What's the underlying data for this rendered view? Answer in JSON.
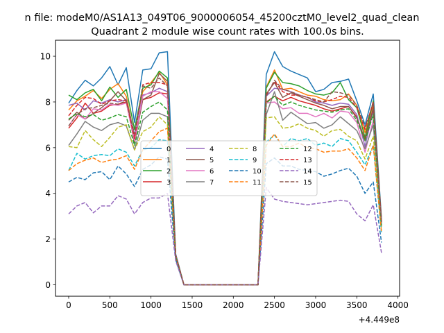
{
  "chart_data": {
    "type": "line",
    "suptitle": "n file: modeM0/AS1A13_049T06_9000006054_45200cztM0_level2_quad_clean",
    "title": "Quadrant 2 module wise count rates with 100.0s bins.",
    "xlabel": "",
    "ylabel": "",
    "x_offset_label": "+4.449e8",
    "xlim": [
      -160,
      4020
    ],
    "ylim": [
      -0.5,
      10.7
    ],
    "xticks": [
      0,
      500,
      1000,
      1500,
      2000,
      2500,
      3000,
      3500,
      4000
    ],
    "yticks": [
      0,
      2,
      4,
      6,
      8,
      10
    ],
    "legend_position": "center",
    "x": [
      0,
      100,
      200,
      300,
      400,
      500,
      600,
      700,
      800,
      900,
      1000,
      1100,
      1200,
      1300,
      1400,
      1500,
      1600,
      1700,
      1800,
      1900,
      2000,
      2100,
      2200,
      2300,
      2400,
      2500,
      2600,
      2700,
      2800,
      2900,
      3000,
      3100,
      3200,
      3300,
      3400,
      3500,
      3600,
      3700,
      3800
    ],
    "series": [
      {
        "name": "0",
        "color": "#1f77b4",
        "dash": "solid",
        "values": [
          7.95,
          8.5,
          8.95,
          8.7,
          9.05,
          9.55,
          8.75,
          9.5,
          7.1,
          9.4,
          9.45,
          10.15,
          10.2,
          1.35,
          0.0,
          0.0,
          0.0,
          0.0,
          0.0,
          0.0,
          0.0,
          0.0,
          0.0,
          0.0,
          9.2,
          10.2,
          9.55,
          9.35,
          9.2,
          9.05,
          8.45,
          8.55,
          8.85,
          8.9,
          9.0,
          8.05,
          7.0,
          8.35,
          2.9
        ]
      },
      {
        "name": "1",
        "color": "#ff7f0e",
        "dash": "solid",
        "values": [
          7.65,
          8.05,
          8.25,
          8.5,
          8.15,
          8.55,
          8.8,
          8.25,
          6.5,
          8.45,
          8.85,
          9.3,
          8.75,
          1.3,
          0.0,
          0.0,
          0.0,
          0.0,
          0.0,
          0.0,
          0.0,
          0.0,
          0.0,
          0.0,
          8.65,
          9.4,
          8.55,
          8.6,
          8.45,
          8.3,
          8.25,
          8.1,
          8.05,
          8.1,
          8.35,
          7.85,
          6.65,
          7.9,
          2.75
        ]
      },
      {
        "name": "2",
        "color": "#2ca02c",
        "dash": "solid",
        "values": [
          8.3,
          8.1,
          8.4,
          8.55,
          8.05,
          8.65,
          8.2,
          8.55,
          6.8,
          8.6,
          8.75,
          9.35,
          9.05,
          1.3,
          0.0,
          0.0,
          0.0,
          0.0,
          0.0,
          0.0,
          0.0,
          0.0,
          0.0,
          0.0,
          8.6,
          9.3,
          8.85,
          8.8,
          8.7,
          8.5,
          8.35,
          8.3,
          8.4,
          8.85,
          8.1,
          7.75,
          6.45,
          8.05,
          2.8
        ]
      },
      {
        "name": "3",
        "color": "#d62728",
        "dash": "solid",
        "values": [
          6.85,
          7.3,
          7.95,
          7.5,
          7.6,
          7.85,
          7.9,
          8.0,
          6.35,
          8.1,
          8.2,
          8.4,
          8.35,
          1.25,
          0.0,
          0.0,
          0.0,
          0.0,
          0.0,
          0.0,
          0.0,
          0.0,
          0.0,
          0.0,
          8.0,
          8.25,
          8.05,
          8.2,
          8.05,
          7.95,
          7.85,
          7.7,
          7.6,
          7.7,
          7.8,
          7.35,
          6.35,
          7.75,
          2.7
        ]
      },
      {
        "name": "4",
        "color": "#9467bd",
        "dash": "solid",
        "values": [
          7.85,
          7.95,
          7.65,
          8.05,
          7.95,
          8.1,
          8.0,
          8.1,
          6.55,
          8.3,
          8.4,
          8.6,
          8.45,
          1.3,
          0.0,
          0.0,
          0.0,
          0.0,
          0.0,
          0.0,
          0.0,
          0.0,
          0.0,
          0.0,
          8.25,
          8.6,
          8.55,
          8.45,
          8.3,
          8.2,
          8.0,
          7.95,
          7.85,
          7.95,
          7.9,
          7.45,
          6.05,
          7.65,
          2.75
        ]
      },
      {
        "name": "5",
        "color": "#8c564b",
        "dash": "solid",
        "values": [
          7.2,
          7.55,
          7.25,
          7.5,
          7.75,
          8.05,
          8.45,
          8.05,
          6.2,
          8.1,
          8.3,
          9.25,
          8.9,
          1.3,
          0.0,
          0.0,
          0.0,
          0.0,
          0.0,
          0.0,
          0.0,
          0.0,
          0.0,
          0.0,
          8.35,
          8.85,
          8.2,
          8.4,
          8.25,
          8.1,
          7.95,
          7.85,
          7.7,
          7.8,
          7.8,
          7.3,
          6.3,
          7.7,
          2.7
        ]
      },
      {
        "name": "6",
        "color": "#e377c2",
        "dash": "solid",
        "values": [
          6.95,
          7.45,
          7.25,
          7.7,
          7.65,
          7.9,
          7.85,
          7.95,
          6.3,
          8.25,
          8.45,
          8.45,
          8.15,
          1.25,
          0.0,
          0.0,
          0.0,
          0.0,
          0.0,
          0.0,
          0.0,
          0.0,
          0.0,
          0.0,
          7.95,
          8.0,
          7.7,
          7.75,
          7.5,
          7.5,
          7.35,
          7.5,
          7.3,
          7.6,
          7.55,
          7.1,
          5.8,
          7.2,
          2.55
        ]
      },
      {
        "name": "7",
        "color": "#7f7f7f",
        "dash": "solid",
        "values": [
          6.1,
          6.6,
          7.15,
          6.9,
          6.75,
          7.0,
          7.1,
          6.95,
          5.9,
          7.2,
          7.5,
          7.5,
          7.35,
          1.2,
          0.0,
          0.0,
          0.0,
          0.0,
          0.0,
          0.0,
          0.0,
          0.0,
          0.0,
          0.0,
          7.45,
          8.45,
          7.2,
          7.55,
          7.3,
          7.05,
          7.1,
          6.85,
          7.0,
          7.35,
          7.05,
          6.75,
          5.95,
          7.0,
          2.55
        ]
      },
      {
        "name": "8",
        "color": "#bcbd22",
        "dash": "dashed",
        "values": [
          6.05,
          6.0,
          6.75,
          6.35,
          6.05,
          6.45,
          6.9,
          7.0,
          5.9,
          6.7,
          6.9,
          7.35,
          7.0,
          1.2,
          0.0,
          0.0,
          0.0,
          0.0,
          0.0,
          0.0,
          0.0,
          0.0,
          0.0,
          0.0,
          7.3,
          7.35,
          6.85,
          6.9,
          7.05,
          6.85,
          6.75,
          6.5,
          6.75,
          6.8,
          6.5,
          6.3,
          5.5,
          6.5,
          2.4
        ]
      },
      {
        "name": "9",
        "color": "#17becf",
        "dash": "dashed",
        "values": [
          5.0,
          5.75,
          5.5,
          5.65,
          5.7,
          5.65,
          5.95,
          5.8,
          5.2,
          5.9,
          6.0,
          6.35,
          6.3,
          1.15,
          0.0,
          0.0,
          0.0,
          0.0,
          0.0,
          0.0,
          0.0,
          0.0,
          0.0,
          0.0,
          6.25,
          6.55,
          6.05,
          6.4,
          6.3,
          6.4,
          6.1,
          6.2,
          6.05,
          6.4,
          6.3,
          5.8,
          5.25,
          6.1,
          2.25
        ]
      },
      {
        "name": "10",
        "color": "#1f77b4",
        "dash": "dashed",
        "values": [
          4.5,
          4.7,
          4.6,
          4.9,
          4.95,
          4.6,
          5.2,
          4.85,
          4.3,
          5.05,
          5.25,
          5.6,
          5.5,
          1.1,
          0.0,
          0.0,
          0.0,
          0.0,
          0.0,
          0.0,
          0.0,
          0.0,
          0.0,
          0.0,
          5.3,
          5.55,
          5.2,
          5.2,
          5.05,
          5.0,
          4.95,
          4.75,
          4.85,
          5.0,
          5.1,
          4.75,
          4.0,
          4.5,
          1.85
        ]
      },
      {
        "name": "11",
        "color": "#ff7f0e",
        "dash": "dashed",
        "values": [
          5.0,
          5.3,
          5.45,
          5.55,
          5.35,
          5.45,
          5.5,
          5.65,
          5.05,
          5.9,
          6.3,
          6.7,
          6.85,
          1.2,
          0.0,
          0.0,
          0.0,
          0.0,
          0.0,
          0.0,
          0.0,
          0.0,
          0.0,
          0.0,
          6.1,
          6.6,
          6.05,
          6.05,
          6.2,
          6.0,
          5.95,
          5.8,
          5.85,
          5.85,
          5.95,
          5.55,
          5.0,
          6.1,
          2.3
        ]
      },
      {
        "name": "12",
        "color": "#2ca02c",
        "dash": "dashed",
        "values": [
          7.25,
          7.5,
          7.35,
          7.45,
          7.2,
          7.3,
          7.45,
          7.35,
          6.1,
          7.55,
          7.8,
          8.0,
          7.65,
          1.25,
          0.0,
          0.0,
          0.0,
          0.0,
          0.0,
          0.0,
          0.0,
          0.0,
          0.0,
          0.0,
          7.95,
          8.25,
          7.85,
          8.0,
          7.85,
          7.75,
          7.65,
          7.6,
          7.55,
          7.65,
          7.7,
          7.2,
          6.3,
          7.45,
          2.6
        ]
      },
      {
        "name": "13",
        "color": "#d62728",
        "dash": "dashed",
        "values": [
          7.4,
          7.85,
          8.2,
          8.15,
          7.9,
          8.05,
          8.1,
          8.05,
          6.4,
          8.75,
          8.85,
          8.85,
          8.75,
          1.3,
          0.0,
          0.0,
          0.0,
          0.0,
          0.0,
          0.0,
          0.0,
          0.0,
          0.0,
          0.0,
          8.3,
          8.9,
          8.45,
          8.3,
          8.3,
          8.2,
          8.05,
          8.0,
          8.1,
          8.25,
          8.2,
          7.75,
          6.8,
          8.0,
          2.8
        ]
      },
      {
        "name": "14",
        "color": "#9467bd",
        "dash": "dashed",
        "values": [
          3.1,
          3.45,
          3.6,
          3.15,
          3.45,
          3.45,
          3.9,
          3.75,
          3.1,
          3.6,
          3.8,
          3.8,
          4.0,
          1.05,
          0.0,
          0.0,
          0.0,
          0.0,
          0.0,
          0.0,
          0.0,
          0.0,
          0.0,
          0.0,
          4.25,
          3.75,
          3.65,
          3.6,
          3.55,
          3.5,
          3.55,
          3.6,
          3.65,
          3.7,
          3.65,
          3.1,
          2.8,
          3.5,
          1.4
        ]
      },
      {
        "name": "15",
        "color": "#8c564b",
        "dash": "dashed",
        "values": [
          6.95,
          7.45,
          7.7,
          7.75,
          7.85,
          7.95,
          7.9,
          8.05,
          6.6,
          8.7,
          8.6,
          9.05,
          8.7,
          1.3,
          0.0,
          0.0,
          0.0,
          0.0,
          0.0,
          0.0,
          0.0,
          0.0,
          0.0,
          0.0,
          8.25,
          8.95,
          8.55,
          8.45,
          8.3,
          8.2,
          8.1,
          8.0,
          8.45,
          8.4,
          8.3,
          7.85,
          6.9,
          7.95,
          2.75
        ]
      }
    ]
  }
}
